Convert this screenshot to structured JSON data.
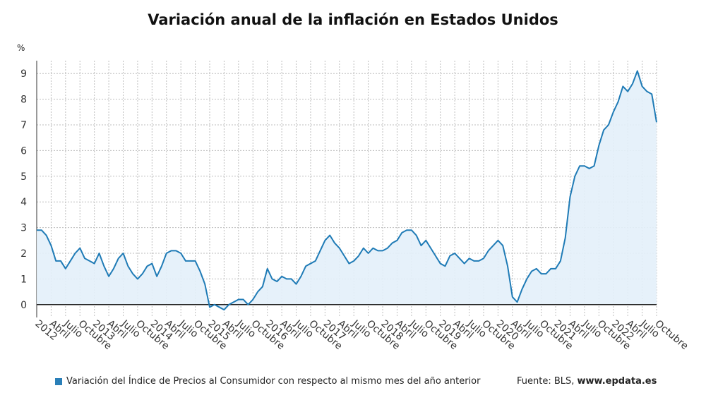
{
  "title": "Variación anual de la inflación en Estados Unidos",
  "unit_label": "%",
  "legend": {
    "label": "Variación del Índice de Precios al Consumidor con respecto al mismo mes del año anterior",
    "color": "#2a7fb8"
  },
  "source": {
    "prefix": "Fuente: BLS, ",
    "site": "www.epdata.es"
  },
  "colors": {
    "line": "#1f7bb6",
    "fill": "#e3f0fa",
    "grid": "#bdbdbd",
    "zero": "#222222"
  },
  "chart_data": {
    "type": "area",
    "ylim": [
      -0.5,
      9.5
    ],
    "yticks": [
      0,
      1,
      2,
      3,
      4,
      5,
      6,
      7,
      8,
      9
    ],
    "grid": true,
    "x_tick_labels": [
      "2012",
      "Abril",
      "Julio",
      "Octubre",
      "2013",
      "Abril",
      "Julio",
      "Octubre",
      "2014",
      "Abril",
      "Julio",
      "Octubre",
      "2015",
      "Abril",
      "Julio",
      "Octubre",
      "2016",
      "Abril",
      "Julio",
      "Octubre",
      "2017",
      "Abril",
      "Julio",
      "Octubre",
      "2018",
      "Abril",
      "Julio",
      "Octubre",
      "2019",
      "Abril",
      "Julio",
      "Octubre",
      "2020",
      "Abril",
      "Julio",
      "Octubre",
      "2021",
      "Abril",
      "Julio",
      "Octubre",
      "2022",
      "Abril",
      "Julio",
      "Octubre"
    ],
    "x": [
      "2012-01",
      "2012-02",
      "2012-03",
      "2012-04",
      "2012-05",
      "2012-06",
      "2012-07",
      "2012-08",
      "2012-09",
      "2012-10",
      "2012-11",
      "2012-12",
      "2013-01",
      "2013-02",
      "2013-03",
      "2013-04",
      "2013-05",
      "2013-06",
      "2013-07",
      "2013-08",
      "2013-09",
      "2013-10",
      "2013-11",
      "2013-12",
      "2014-01",
      "2014-02",
      "2014-03",
      "2014-04",
      "2014-05",
      "2014-06",
      "2014-07",
      "2014-08",
      "2014-09",
      "2014-10",
      "2014-11",
      "2014-12",
      "2015-01",
      "2015-02",
      "2015-03",
      "2015-04",
      "2015-05",
      "2015-06",
      "2015-07",
      "2015-08",
      "2015-09",
      "2015-10",
      "2015-11",
      "2015-12",
      "2016-01",
      "2016-02",
      "2016-03",
      "2016-04",
      "2016-05",
      "2016-06",
      "2016-07",
      "2016-08",
      "2016-09",
      "2016-10",
      "2016-11",
      "2016-12",
      "2017-01",
      "2017-02",
      "2017-03",
      "2017-04",
      "2017-05",
      "2017-06",
      "2017-07",
      "2017-08",
      "2017-09",
      "2017-10",
      "2017-11",
      "2017-12",
      "2018-01",
      "2018-02",
      "2018-03",
      "2018-04",
      "2018-05",
      "2018-06",
      "2018-07",
      "2018-08",
      "2018-09",
      "2018-10",
      "2018-11",
      "2018-12",
      "2019-01",
      "2019-02",
      "2019-03",
      "2019-04",
      "2019-05",
      "2019-06",
      "2019-07",
      "2019-08",
      "2019-09",
      "2019-10",
      "2019-11",
      "2019-12",
      "2020-01",
      "2020-02",
      "2020-03",
      "2020-04",
      "2020-05",
      "2020-06",
      "2020-07",
      "2020-08",
      "2020-09",
      "2020-10",
      "2020-11",
      "2020-12",
      "2021-01",
      "2021-02",
      "2021-03",
      "2021-04",
      "2021-05",
      "2021-06",
      "2021-07",
      "2021-08",
      "2021-09",
      "2021-10",
      "2021-11",
      "2021-12",
      "2022-01",
      "2022-02",
      "2022-03",
      "2022-04",
      "2022-05",
      "2022-06",
      "2022-07",
      "2022-08",
      "2022-09",
      "2022-10"
    ],
    "series": [
      {
        "values": [
          2.9,
          2.9,
          2.7,
          2.3,
          1.7,
          1.7,
          1.4,
          1.7,
          2.0,
          2.2,
          1.8,
          1.7,
          1.6,
          2.0,
          1.5,
          1.1,
          1.4,
          1.8,
          2.0,
          1.5,
          1.2,
          1.0,
          1.2,
          1.5,
          1.6,
          1.1,
          1.5,
          2.0,
          2.1,
          2.1,
          2.0,
          1.7,
          1.7,
          1.7,
          1.3,
          0.8,
          -0.1,
          0.0,
          -0.1,
          -0.2,
          0.0,
          0.1,
          0.2,
          0.2,
          0.0,
          0.2,
          0.5,
          0.7,
          1.4,
          1.0,
          0.9,
          1.1,
          1.0,
          1.0,
          0.8,
          1.1,
          1.5,
          1.6,
          1.7,
          2.1,
          2.5,
          2.7,
          2.4,
          2.2,
          1.9,
          1.6,
          1.7,
          1.9,
          2.2,
          2.0,
          2.2,
          2.1,
          2.1,
          2.2,
          2.4,
          2.5,
          2.8,
          2.9,
          2.9,
          2.7,
          2.3,
          2.5,
          2.2,
          1.9,
          1.6,
          1.5,
          1.9,
          2.0,
          1.8,
          1.6,
          1.8,
          1.7,
          1.7,
          1.8,
          2.1,
          2.3,
          2.5,
          2.3,
          1.5,
          0.3,
          0.1,
          0.6,
          1.0,
          1.3,
          1.4,
          1.2,
          1.2,
          1.4,
          1.4,
          1.7,
          2.6,
          4.2,
          5.0,
          5.4,
          5.4,
          5.3,
          5.4,
          6.2,
          6.8,
          7.0,
          7.5,
          7.9,
          8.5,
          8.3,
          8.6,
          9.1,
          8.5,
          8.3,
          8.2,
          7.1
        ]
      }
    ]
  }
}
